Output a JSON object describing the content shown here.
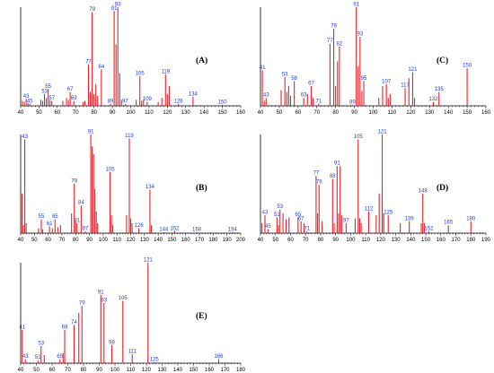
{
  "chart_data": [
    {
      "type": "bar",
      "panel_label": "(A)",
      "xlim": [
        40,
        160
      ],
      "xticks": [
        40,
        50,
        60,
        70,
        80,
        90,
        100,
        110,
        120,
        130,
        140,
        150,
        160
      ],
      "ylim": [
        0,
        100
      ],
      "peaks": [
        {
          "x": 41,
          "y": 5
        },
        {
          "x": 42,
          "y": 4
        },
        {
          "x": 43,
          "y": 7,
          "label": "43"
        },
        {
          "x": 44,
          "y": 3
        },
        {
          "x": 45,
          "y": 2,
          "label": "45"
        },
        {
          "x": 51,
          "y": 6
        },
        {
          "x": 52,
          "y": 5
        },
        {
          "x": 53,
          "y": 12,
          "label": "53"
        },
        {
          "x": 54,
          "y": 8
        },
        {
          "x": 55,
          "y": 17,
          "label": "55"
        },
        {
          "x": 56,
          "y": 6
        },
        {
          "x": 57,
          "y": 5,
          "label": "57"
        },
        {
          "x": 63,
          "y": 5
        },
        {
          "x": 65,
          "y": 8
        },
        {
          "x": 66,
          "y": 6
        },
        {
          "x": 67,
          "y": 14,
          "label": "67"
        },
        {
          "x": 69,
          "y": 5,
          "label": "69"
        },
        {
          "x": 74,
          "y": 4
        },
        {
          "x": 75,
          "y": 5
        },
        {
          "x": 77,
          "y": 42,
          "label": "77"
        },
        {
          "x": 78,
          "y": 14
        },
        {
          "x": 79,
          "y": 95,
          "label": "79"
        },
        {
          "x": 80,
          "y": 12
        },
        {
          "x": 81,
          "y": 22
        },
        {
          "x": 82,
          "y": 10
        },
        {
          "x": 84,
          "y": 37,
          "label": "84"
        },
        {
          "x": 89,
          "y": 2,
          "label": "89"
        },
        {
          "x": 91,
          "y": 96,
          "label": "91"
        },
        {
          "x": 92,
          "y": 62
        },
        {
          "x": 93,
          "y": 100,
          "label": "93"
        },
        {
          "x": 94,
          "y": 33
        },
        {
          "x": 95,
          "y": 6
        },
        {
          "x": 97,
          "y": 2,
          "label": "97"
        },
        {
          "x": 103,
          "y": 6
        },
        {
          "x": 105,
          "y": 30,
          "label": "105"
        },
        {
          "x": 106,
          "y": 5
        },
        {
          "x": 107,
          "y": 6
        },
        {
          "x": 109,
          "y": 4,
          "label": "109"
        },
        {
          "x": 115,
          "y": 4
        },
        {
          "x": 117,
          "y": 8
        },
        {
          "x": 119,
          "y": 32,
          "label": "119"
        },
        {
          "x": 120,
          "y": 12
        },
        {
          "x": 121,
          "y": 20
        },
        {
          "x": 126,
          "y": 2,
          "label": "126"
        },
        {
          "x": 134,
          "y": 9,
          "label": "134"
        },
        {
          "x": 150,
          "y": 1,
          "label": "150"
        }
      ]
    },
    {
      "type": "bar",
      "panel_label": "(B)",
      "xlim": [
        40,
        200
      ],
      "xticks": [
        40,
        50,
        60,
        70,
        80,
        90,
        100,
        110,
        120,
        130,
        140,
        150,
        160,
        170,
        180,
        190,
        200
      ],
      "ylim": [
        0,
        100
      ],
      "peaks": [
        {
          "x": 41,
          "y": 40
        },
        {
          "x": 42,
          "y": 8
        },
        {
          "x": 43,
          "y": 95,
          "label": "43"
        },
        {
          "x": 44,
          "y": 10
        },
        {
          "x": 53,
          "y": 5
        },
        {
          "x": 55,
          "y": 14,
          "label": "55"
        },
        {
          "x": 56,
          "y": 4
        },
        {
          "x": 61,
          "y": 7,
          "label": "61"
        },
        {
          "x": 63,
          "y": 5
        },
        {
          "x": 65,
          "y": 14,
          "label": "65"
        },
        {
          "x": 67,
          "y": 6
        },
        {
          "x": 69,
          "y": 8
        },
        {
          "x": 77,
          "y": 20
        },
        {
          "x": 79,
          "y": 50,
          "label": "79"
        },
        {
          "x": 80,
          "y": 12
        },
        {
          "x": 81,
          "y": 10,
          "label": "81"
        },
        {
          "x": 84,
          "y": 28,
          "label": "84"
        },
        {
          "x": 87,
          "y": 2,
          "label": "87"
        },
        {
          "x": 91,
          "y": 100,
          "label": "91"
        },
        {
          "x": 92,
          "y": 88
        },
        {
          "x": 93,
          "y": 80
        },
        {
          "x": 94,
          "y": 45
        },
        {
          "x": 95,
          "y": 22
        },
        {
          "x": 96,
          "y": 10
        },
        {
          "x": 105,
          "y": 62,
          "label": "105"
        },
        {
          "x": 106,
          "y": 18
        },
        {
          "x": 107,
          "y": 8
        },
        {
          "x": 117,
          "y": 18
        },
        {
          "x": 119,
          "y": 96,
          "label": "119"
        },
        {
          "x": 120,
          "y": 15
        },
        {
          "x": 121,
          "y": 10
        },
        {
          "x": 126,
          "y": 5,
          "label": "126"
        },
        {
          "x": 134,
          "y": 44,
          "label": "134"
        },
        {
          "x": 135,
          "y": 8
        },
        {
          "x": 144,
          "y": 1,
          "label": "144"
        },
        {
          "x": 152,
          "y": 2,
          "label": "152"
        },
        {
          "x": 168,
          "y": 1,
          "label": "168"
        },
        {
          "x": 194,
          "y": 1,
          "label": "194"
        }
      ]
    },
    {
      "type": "bar",
      "panel_label": "(C)",
      "xlim": [
        40,
        160
      ],
      "xticks": [
        40,
        50,
        60,
        70,
        80,
        90,
        100,
        110,
        120,
        130,
        140,
        150,
        160
      ],
      "ylim": [
        0,
        100
      ],
      "peaks": [
        {
          "x": 41,
          "y": 36,
          "label": "41"
        },
        {
          "x": 42,
          "y": 5
        },
        {
          "x": 43,
          "y": 8,
          "label": "43"
        },
        {
          "x": 51,
          "y": 16
        },
        {
          "x": 53,
          "y": 29,
          "label": "53"
        },
        {
          "x": 54,
          "y": 14
        },
        {
          "x": 55,
          "y": 20
        },
        {
          "x": 56,
          "y": 10
        },
        {
          "x": 58,
          "y": 25,
          "label": "58"
        },
        {
          "x": 63,
          "y": 8,
          "label": "63"
        },
        {
          "x": 65,
          "y": 12
        },
        {
          "x": 67,
          "y": 20,
          "label": "67"
        },
        {
          "x": 68,
          "y": 8
        },
        {
          "x": 71,
          "y": 2,
          "label": "71"
        },
        {
          "x": 77,
          "y": 63,
          "label": "77"
        },
        {
          "x": 79,
          "y": 78,
          "label": "79"
        },
        {
          "x": 80,
          "y": 20
        },
        {
          "x": 81,
          "y": 45
        },
        {
          "x": 82,
          "y": 60,
          "label": "82"
        },
        {
          "x": 89,
          "y": 1,
          "label": "89"
        },
        {
          "x": 91,
          "y": 100,
          "label": "91"
        },
        {
          "x": 92,
          "y": 40
        },
        {
          "x": 93,
          "y": 70,
          "label": "93"
        },
        {
          "x": 94,
          "y": 15
        },
        {
          "x": 95,
          "y": 25,
          "label": "95"
        },
        {
          "x": 103,
          "y": 8
        },
        {
          "x": 105,
          "y": 20
        },
        {
          "x": 107,
          "y": 22,
          "label": "107"
        },
        {
          "x": 108,
          "y": 8
        },
        {
          "x": 109,
          "y": 12
        },
        {
          "x": 117,
          "y": 18,
          "label": "117"
        },
        {
          "x": 119,
          "y": 28
        },
        {
          "x": 121,
          "y": 34,
          "label": "121"
        },
        {
          "x": 122,
          "y": 8
        },
        {
          "x": 132,
          "y": 4,
          "label": "132"
        },
        {
          "x": 135,
          "y": 14,
          "label": "135"
        },
        {
          "x": 150,
          "y": 38,
          "label": "150"
        }
      ]
    },
    {
      "type": "bar",
      "panel_label": "(D)",
      "xlim": [
        40,
        190
      ],
      "xticks": [
        40,
        50,
        60,
        70,
        80,
        90,
        100,
        110,
        120,
        130,
        140,
        150,
        160,
        170,
        180,
        190
      ],
      "ylim": [
        0,
        100
      ],
      "peaks": [
        {
          "x": 41,
          "y": 10
        },
        {
          "x": 43,
          "y": 18,
          "label": "43"
        },
        {
          "x": 45,
          "y": 4,
          "label": "45"
        },
        {
          "x": 51,
          "y": 16,
          "label": "51"
        },
        {
          "x": 52,
          "y": 8
        },
        {
          "x": 53,
          "y": 24,
          "label": "53"
        },
        {
          "x": 55,
          "y": 20
        },
        {
          "x": 57,
          "y": 14
        },
        {
          "x": 59,
          "y": 16
        },
        {
          "x": 65,
          "y": 16,
          "label": "65"
        },
        {
          "x": 67,
          "y": 12,
          "label": "67"
        },
        {
          "x": 69,
          "y": 10
        },
        {
          "x": 71,
          "y": 2,
          "label": "71"
        },
        {
          "x": 77,
          "y": 58,
          "label": "77"
        },
        {
          "x": 78,
          "y": 20
        },
        {
          "x": 79,
          "y": 49,
          "label": "79"
        },
        {
          "x": 81,
          "y": 12
        },
        {
          "x": 88,
          "y": 55,
          "label": "88"
        },
        {
          "x": 89,
          "y": 10
        },
        {
          "x": 91,
          "y": 68,
          "label": "91"
        },
        {
          "x": 92,
          "y": 20
        },
        {
          "x": 93,
          "y": 68
        },
        {
          "x": 94,
          "y": 18
        },
        {
          "x": 97,
          "y": 10,
          "label": "97"
        },
        {
          "x": 103,
          "y": 15
        },
        {
          "x": 105,
          "y": 95,
          "label": "105"
        },
        {
          "x": 106,
          "y": 15
        },
        {
          "x": 107,
          "y": 10
        },
        {
          "x": 112,
          "y": 22,
          "label": "112"
        },
        {
          "x": 117,
          "y": 18
        },
        {
          "x": 119,
          "y": 40
        },
        {
          "x": 121,
          "y": 100,
          "label": "121"
        },
        {
          "x": 122,
          "y": 20
        },
        {
          "x": 125,
          "y": 18,
          "label": "125"
        },
        {
          "x": 133,
          "y": 10
        },
        {
          "x": 139,
          "y": 12,
          "label": "139"
        },
        {
          "x": 147,
          "y": 10
        },
        {
          "x": 148,
          "y": 40,
          "label": "148"
        },
        {
          "x": 149,
          "y": 10
        },
        {
          "x": 152,
          "y": 2,
          "label": "152"
        },
        {
          "x": 165,
          "y": 8,
          "label": "165"
        },
        {
          "x": 180,
          "y": 12,
          "label": "180"
        }
      ]
    },
    {
      "type": "bar",
      "panel_label": "(E)",
      "xlim": [
        40,
        180
      ],
      "xticks": [
        40,
        50,
        60,
        70,
        80,
        90,
        100,
        110,
        120,
        130,
        140,
        150,
        160,
        170,
        180
      ],
      "ylim": [
        0,
        100
      ],
      "peaks": [
        {
          "x": 41,
          "y": 33,
          "label": "41"
        },
        {
          "x": 43,
          "y": 4,
          "label": "43"
        },
        {
          "x": 51,
          "y": 3,
          "label": "51"
        },
        {
          "x": 53,
          "y": 17,
          "label": "53"
        },
        {
          "x": 55,
          "y": 8
        },
        {
          "x": 65,
          "y": 4,
          "label": "65"
        },
        {
          "x": 67,
          "y": 10
        },
        {
          "x": 68,
          "y": 33,
          "label": "68"
        },
        {
          "x": 74,
          "y": 38,
          "label": "74"
        },
        {
          "x": 77,
          "y": 50
        },
        {
          "x": 79,
          "y": 57,
          "label": "79"
        },
        {
          "x": 91,
          "y": 68,
          "label": "91"
        },
        {
          "x": 93,
          "y": 60,
          "label": "93"
        },
        {
          "x": 98,
          "y": 18,
          "label": "98"
        },
        {
          "x": 105,
          "y": 62,
          "label": "105"
        },
        {
          "x": 111,
          "y": 9,
          "label": "111"
        },
        {
          "x": 121,
          "y": 100,
          "label": "121"
        },
        {
          "x": 125,
          "y": 1,
          "label": "125"
        },
        {
          "x": 166,
          "y": 4,
          "label": "166"
        }
      ]
    }
  ]
}
